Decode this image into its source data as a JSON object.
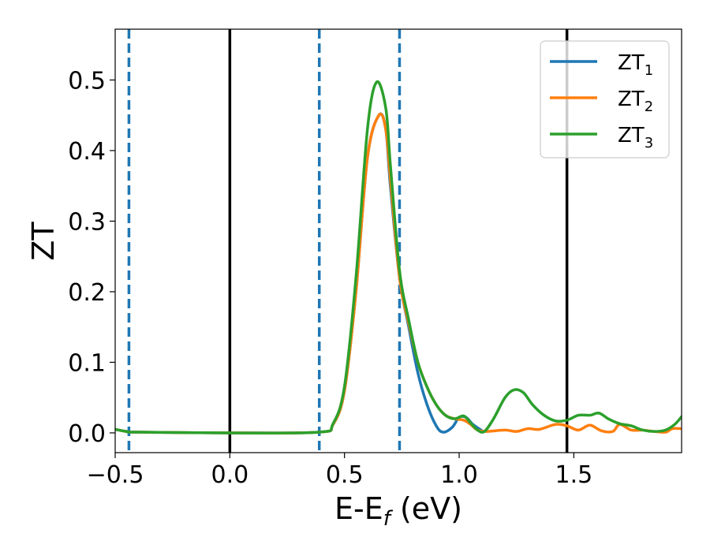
{
  "chart_data": {
    "type": "line",
    "xlabel": "E-E",
    "xlabel_sub": "f",
    "xlabel_unit": " (eV)",
    "ylabel": "ZT",
    "xlim": [
      -0.5,
      1.97
    ],
    "ylim": [
      -0.028,
      0.572
    ],
    "x_ticks": [
      -0.5,
      0.0,
      0.5,
      1.0,
      1.5
    ],
    "x_tick_labels": [
      "−0.5",
      "0.0",
      "0.5",
      "1.0",
      "1.5"
    ],
    "y_ticks": [
      0.0,
      0.1,
      0.2,
      0.3,
      0.4,
      0.5
    ],
    "y_tick_labels": [
      "0.0",
      "0.1",
      "0.2",
      "0.3",
      "0.4",
      "0.5"
    ],
    "grid": false,
    "legend_position": "top-right",
    "vlines_solid": [
      0.0,
      1.47
    ],
    "vlines_dashed": [
      -0.44,
      0.39,
      0.74
    ],
    "vline_solid_color": "#000000",
    "vline_dashed_color": "#1f77b4",
    "series": [
      {
        "name": "ZT",
        "name_sub": "1",
        "color": "#1f77b4",
        "points": [
          [
            -0.5,
            0.005
          ],
          [
            -0.45,
            0.002
          ],
          [
            -0.4,
            0.001
          ],
          [
            0.0,
            0.0
          ],
          [
            0.39,
            0.001
          ],
          [
            0.45,
            0.012
          ],
          [
            0.5,
            0.06
          ],
          [
            0.55,
            0.2
          ],
          [
            0.6,
            0.39
          ],
          [
            0.65,
            0.45
          ],
          [
            0.68,
            0.43
          ],
          [
            0.7,
            0.35
          ],
          [
            0.74,
            0.22
          ],
          [
            0.78,
            0.15
          ],
          [
            0.82,
            0.085
          ],
          [
            0.86,
            0.04
          ],
          [
            0.9,
            0.01
          ],
          [
            0.93,
            0.001
          ],
          [
            0.97,
            0.008
          ],
          [
            1.0,
            0.022
          ],
          [
            1.03,
            0.022
          ],
          [
            1.06,
            0.012
          ],
          [
            1.1,
            0.003
          ]
        ]
      },
      {
        "name": "ZT",
        "name_sub": "2",
        "color": "#ff7f0e",
        "points": [
          [
            -0.5,
            0.005
          ],
          [
            -0.45,
            0.002
          ],
          [
            -0.4,
            0.001
          ],
          [
            0.0,
            0.0
          ],
          [
            0.39,
            0.001
          ],
          [
            0.45,
            0.012
          ],
          [
            0.5,
            0.06
          ],
          [
            0.55,
            0.2
          ],
          [
            0.6,
            0.39
          ],
          [
            0.65,
            0.45
          ],
          [
            0.68,
            0.43
          ],
          [
            0.7,
            0.36
          ],
          [
            0.74,
            0.22
          ],
          [
            0.78,
            0.155
          ],
          [
            0.82,
            0.1
          ],
          [
            0.86,
            0.065
          ],
          [
            0.9,
            0.04
          ],
          [
            0.94,
            0.025
          ],
          [
            0.98,
            0.02
          ],
          [
            1.02,
            0.018
          ],
          [
            1.05,
            0.012
          ],
          [
            1.08,
            0.004
          ],
          [
            1.12,
            0.002
          ],
          [
            1.2,
            0.004
          ],
          [
            1.25,
            0.002
          ],
          [
            1.3,
            0.006
          ],
          [
            1.35,
            0.005
          ],
          [
            1.42,
            0.012
          ],
          [
            1.47,
            0.01
          ],
          [
            1.52,
            0.004
          ],
          [
            1.57,
            0.011
          ],
          [
            1.62,
            0.003
          ],
          [
            1.67,
            0.002
          ],
          [
            1.7,
            0.012
          ],
          [
            1.75,
            0.004
          ],
          [
            1.8,
            0.004
          ],
          [
            1.85,
            0.002
          ],
          [
            1.9,
            0.001
          ],
          [
            1.93,
            0.006
          ],
          [
            1.97,
            0.006
          ]
        ]
      },
      {
        "name": "ZT",
        "name_sub": "3",
        "color": "#2ca02c",
        "points": [
          [
            -0.5,
            0.005
          ],
          [
            -0.45,
            0.002
          ],
          [
            -0.4,
            0.001
          ],
          [
            0.0,
            0.0
          ],
          [
            0.39,
            0.001
          ],
          [
            0.45,
            0.013
          ],
          [
            0.5,
            0.066
          ],
          [
            0.55,
            0.22
          ],
          [
            0.6,
            0.43
          ],
          [
            0.64,
            0.497
          ],
          [
            0.68,
            0.46
          ],
          [
            0.7,
            0.38
          ],
          [
            0.74,
            0.23
          ],
          [
            0.78,
            0.16
          ],
          [
            0.82,
            0.1
          ],
          [
            0.86,
            0.065
          ],
          [
            0.9,
            0.04
          ],
          [
            0.94,
            0.025
          ],
          [
            0.98,
            0.02
          ],
          [
            1.02,
            0.024
          ],
          [
            1.05,
            0.014
          ],
          [
            1.08,
            0.004
          ],
          [
            1.11,
            0.002
          ],
          [
            1.15,
            0.02
          ],
          [
            1.2,
            0.05
          ],
          [
            1.24,
            0.061
          ],
          [
            1.28,
            0.057
          ],
          [
            1.32,
            0.04
          ],
          [
            1.37,
            0.025
          ],
          [
            1.42,
            0.017
          ],
          [
            1.47,
            0.018
          ],
          [
            1.52,
            0.025
          ],
          [
            1.57,
            0.025
          ],
          [
            1.61,
            0.028
          ],
          [
            1.65,
            0.02
          ],
          [
            1.7,
            0.013
          ],
          [
            1.75,
            0.01
          ],
          [
            1.8,
            0.004
          ],
          [
            1.85,
            0.002
          ],
          [
            1.9,
            0.004
          ],
          [
            1.94,
            0.012
          ],
          [
            1.97,
            0.023
          ]
        ]
      }
    ]
  }
}
